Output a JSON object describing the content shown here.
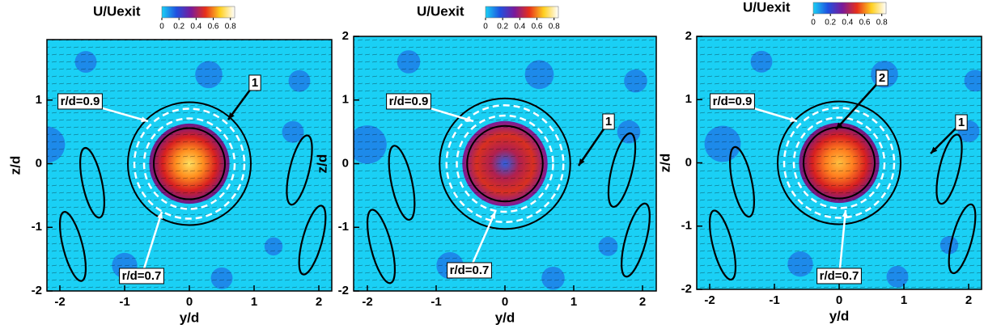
{
  "chart_data": [
    {
      "type": "contour",
      "colorbar": {
        "label": "U/Uexit",
        "lim": [
          0,
          0.85
        ],
        "ticks": [
          0,
          0.2,
          0.4,
          0.6,
          0.8
        ],
        "colors": [
          "#1ad0f5",
          "#2050e0",
          "#7a1a9a",
          "#e8301a",
          "#ffd020",
          "#ffffff"
        ]
      },
      "xlabel": "y/d",
      "ylabel": "z/d",
      "xlim": [
        -2.2,
        2.2
      ],
      "ylim": [
        -2,
        1.95
      ],
      "xticks": [
        -2,
        -1,
        0,
        1,
        2
      ],
      "yticks": [
        -2,
        -1,
        0,
        1
      ],
      "annotations": [
        "1",
        "r/d=0.9",
        "r/d=0.7"
      ]
    },
    {
      "type": "contour",
      "colorbar": {
        "label": "U/Uexit",
        "lim": [
          0,
          0.85
        ],
        "ticks": [
          0,
          0.2,
          0.4,
          0.6,
          0.8
        ],
        "colors": [
          "#1ad0f5",
          "#2050e0",
          "#7a1a9a",
          "#e8301a",
          "#ffd020",
          "#ffffff"
        ]
      },
      "xlabel": "y/d",
      "ylabel": "z/d",
      "xlim": [
        -2.2,
        2.2
      ],
      "ylim": [
        -2,
        2
      ],
      "xticks": [
        -2,
        -1,
        0,
        1,
        2
      ],
      "yticks": [
        -2,
        -1,
        0,
        1,
        2
      ],
      "annotations": [
        "r/d=0.9",
        "1",
        "r/d=0.7"
      ]
    },
    {
      "type": "contour",
      "colorbar": {
        "label": "U/Uexit",
        "lim": [
          0,
          0.85
        ],
        "ticks": [
          0,
          0.2,
          0.4,
          0.6,
          0.8
        ],
        "colors": [
          "#1ad0f5",
          "#2050e0",
          "#7a1a9a",
          "#e8301a",
          "#ffd020",
          "#ffffff"
        ]
      },
      "xlabel": "y/d",
      "ylabel": "z/d",
      "xlim": [
        -2.2,
        2.2
      ],
      "ylim": [
        -2,
        2
      ],
      "xticks": [
        -2,
        -1,
        0,
        1,
        2
      ],
      "yticks": [
        -2,
        -1,
        0,
        1,
        2
      ],
      "annotations": [
        "2",
        "r/d=0.9",
        "1",
        "r/d=0.7"
      ]
    }
  ]
}
